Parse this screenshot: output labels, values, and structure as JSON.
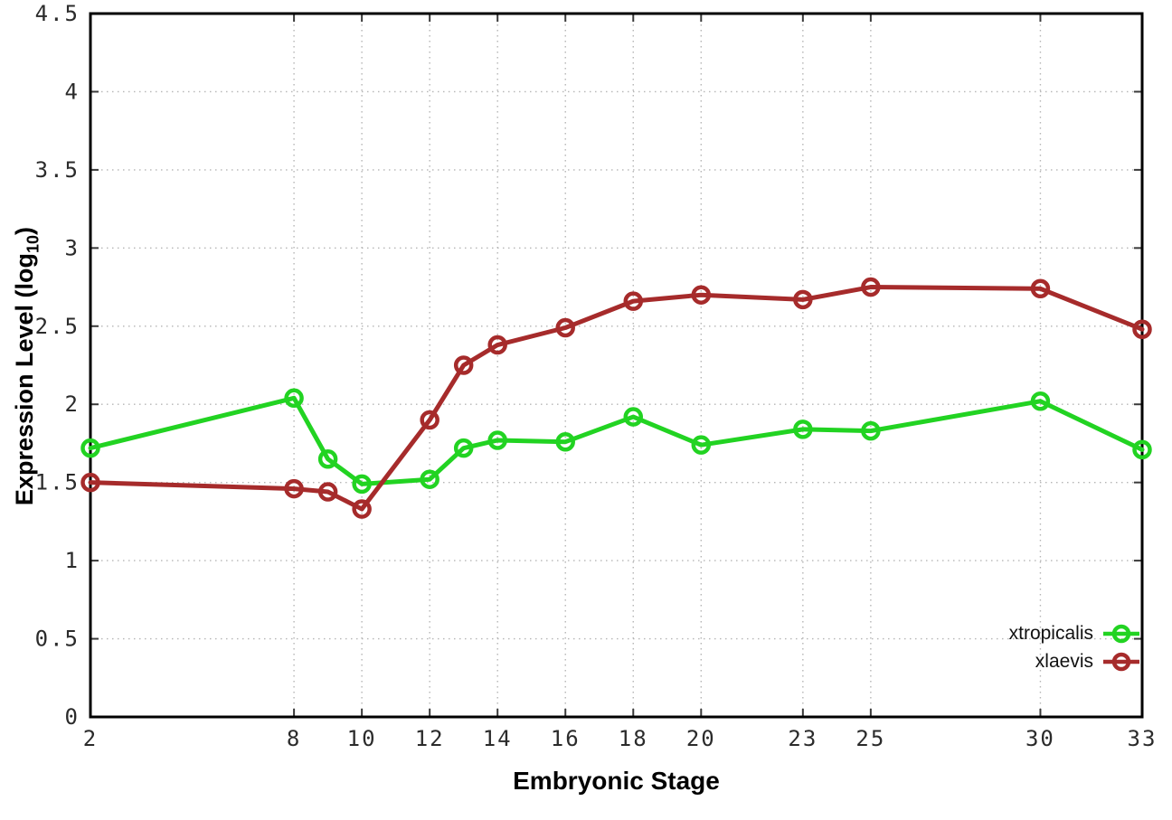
{
  "chart_data": {
    "type": "line",
    "title": "",
    "xlabel": "Embryonic Stage",
    "ylabel_prefix": "Expression Level (log",
    "ylabel_sub": "10",
    "ylabel_suffix": ")",
    "xlim": [
      2,
      33
    ],
    "ylim": [
      0,
      4.5
    ],
    "grid": true,
    "legend_position": "inside-bottom-right",
    "x": [
      2,
      8,
      9,
      10,
      12,
      13,
      14,
      16,
      18,
      20,
      23,
      25,
      30,
      33
    ],
    "series": [
      {
        "name": "xtropicalis",
        "color": "#22d322",
        "marker": "open-circle",
        "values": [
          1.72,
          2.04,
          1.65,
          1.49,
          1.52,
          1.72,
          1.77,
          1.76,
          1.92,
          1.74,
          1.84,
          1.83,
          2.02,
          1.71
        ]
      },
      {
        "name": "xlaevis",
        "color": "#a62b2b",
        "marker": "open-circle",
        "values": [
          1.5,
          1.46,
          1.44,
          1.33,
          1.9,
          2.25,
          2.38,
          2.49,
          2.66,
          2.7,
          2.67,
          2.75,
          2.74,
          2.48
        ]
      }
    ],
    "xticks": {
      "positions": [
        2,
        8,
        10,
        12,
        14,
        16,
        18,
        20,
        23,
        25,
        30,
        33
      ],
      "labels": [
        "2",
        "8",
        "10",
        "12",
        "14",
        "16",
        "18",
        "20",
        "23",
        "25",
        "30",
        "33"
      ]
    },
    "yticks": {
      "positions": [
        0,
        0.5,
        1,
        1.5,
        2,
        2.5,
        3,
        3.5,
        4,
        4.5
      ],
      "labels": [
        "0",
        "0.5",
        "1",
        "1.5",
        "2",
        "2.5",
        "3",
        "3.5",
        "4",
        "4.5"
      ]
    }
  }
}
